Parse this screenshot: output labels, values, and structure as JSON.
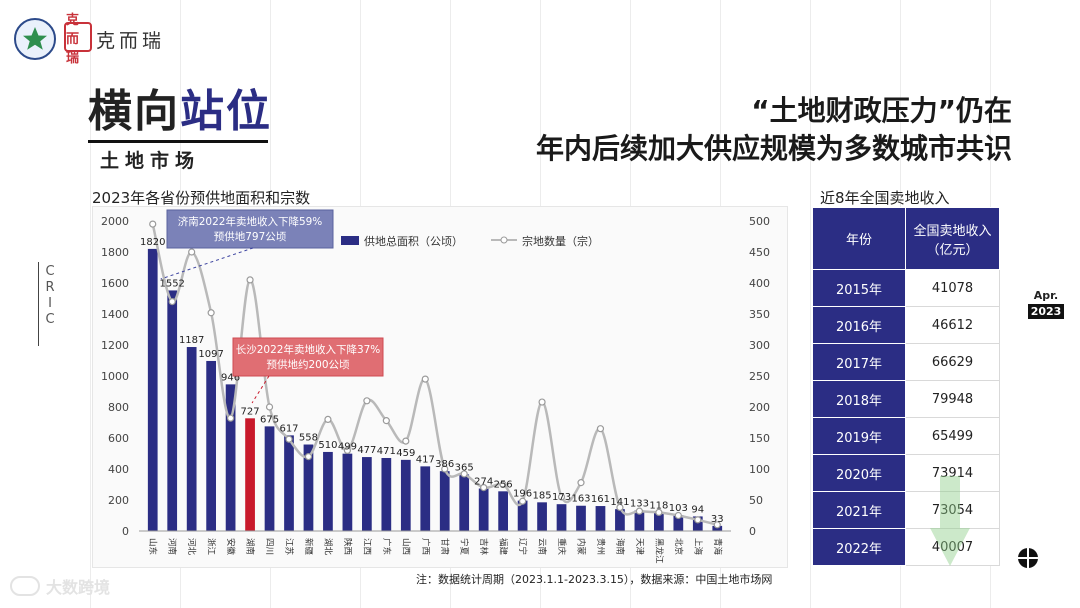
{
  "brand": {
    "seal_text": "克而瑞",
    "name": "克而瑞"
  },
  "header": {
    "title_part1": "横向",
    "title_part2": "站位",
    "subtitle": "土地市场",
    "headline_line1": "“土地财政压力”仍在",
    "headline_line2": "年内后续加大供应规模为多数城市共识"
  },
  "side_label": [
    "C",
    "R",
    "I",
    "C"
  ],
  "date": {
    "month": "Apr.",
    "year": "2023"
  },
  "chart_data": {
    "type": "bar",
    "title": "2023年各省份预供地面积和宗数",
    "categories": [
      "山东",
      "河南",
      "河北",
      "浙江",
      "安徽",
      "湖南",
      "四川",
      "江苏",
      "新疆",
      "湖北",
      "陕西",
      "江西",
      "广东",
      "山西",
      "广西",
      "甘肃",
      "宁夏",
      "吉林",
      "福建",
      "辽宁",
      "云南",
      "重庆",
      "内蒙",
      "贵州",
      "海南",
      "天津",
      "黑龙江",
      "北京",
      "上海",
      "青海"
    ],
    "series": [
      {
        "name": "供地总面积（公顷）",
        "type": "bar",
        "axis": "left",
        "values": [
          1820,
          1552,
          1187,
          1097,
          946,
          727,
          675,
          617,
          558,
          510,
          499,
          477,
          471,
          459,
          417,
          386,
          365,
          274,
          256,
          196,
          185,
          173,
          163,
          161,
          141,
          133,
          118,
          103,
          94,
          33
        ]
      },
      {
        "name": "宗地数量（宗）",
        "type": "line",
        "axis": "right",
        "values": [
          495,
          370,
          450,
          352,
          182,
          405,
          200,
          148,
          120,
          180,
          130,
          210,
          178,
          145,
          245,
          100,
          92,
          70,
          75,
          48,
          208,
          55,
          78,
          165,
          38,
          32,
          30,
          25,
          18,
          10
        ]
      }
    ],
    "highlight_index": 5,
    "ylim": [
      0,
      2000
    ],
    "yticks": [
      0,
      200,
      400,
      600,
      800,
      1000,
      1200,
      1400,
      1600,
      1800,
      2000
    ],
    "y2lim": [
      0,
      500
    ],
    "y2ticks": [
      0,
      50,
      100,
      150,
      200,
      250,
      300,
      350,
      400,
      450,
      500
    ],
    "legend": {
      "bar": "供地总面积（公顷）",
      "line": "宗地数量（宗）",
      "position": "top-center"
    },
    "annotations": [
      {
        "line1": "济南2022年卖地收入下降59%",
        "line2": "预供地797公顷",
        "target_index": 0,
        "style": "blue"
      },
      {
        "line1": "长沙2022年卖地收入下降37%",
        "line2": "预供地约200公顷",
        "target_index": 5,
        "style": "red"
      }
    ]
  },
  "table": {
    "title": "近8年全国卖地收入",
    "header_year": "年份",
    "header_value": "全国卖地收入（亿元）",
    "rows": [
      {
        "year": "2015年",
        "value": "41078"
      },
      {
        "year": "2016年",
        "value": "46612"
      },
      {
        "year": "2017年",
        "value": "66629"
      },
      {
        "year": "2018年",
        "value": "79948"
      },
      {
        "year": "2019年",
        "value": "65499"
      },
      {
        "year": "2020年",
        "value": "73914"
      },
      {
        "year": "2021年",
        "value": "73054"
      },
      {
        "year": "2022年",
        "value": "40007"
      }
    ]
  },
  "footnote": "注：数据统计周期（2023.1.1-2023.3.15），数据来源：中国土地市场网",
  "watermark": "大数跨境",
  "colors": {
    "bar": "#2b2d84",
    "highlight": "#c8192b",
    "line": "#b9b9b9",
    "accent": "#2b2d84",
    "note_blue": "#7b82b8",
    "note_red": "#e06e73"
  }
}
